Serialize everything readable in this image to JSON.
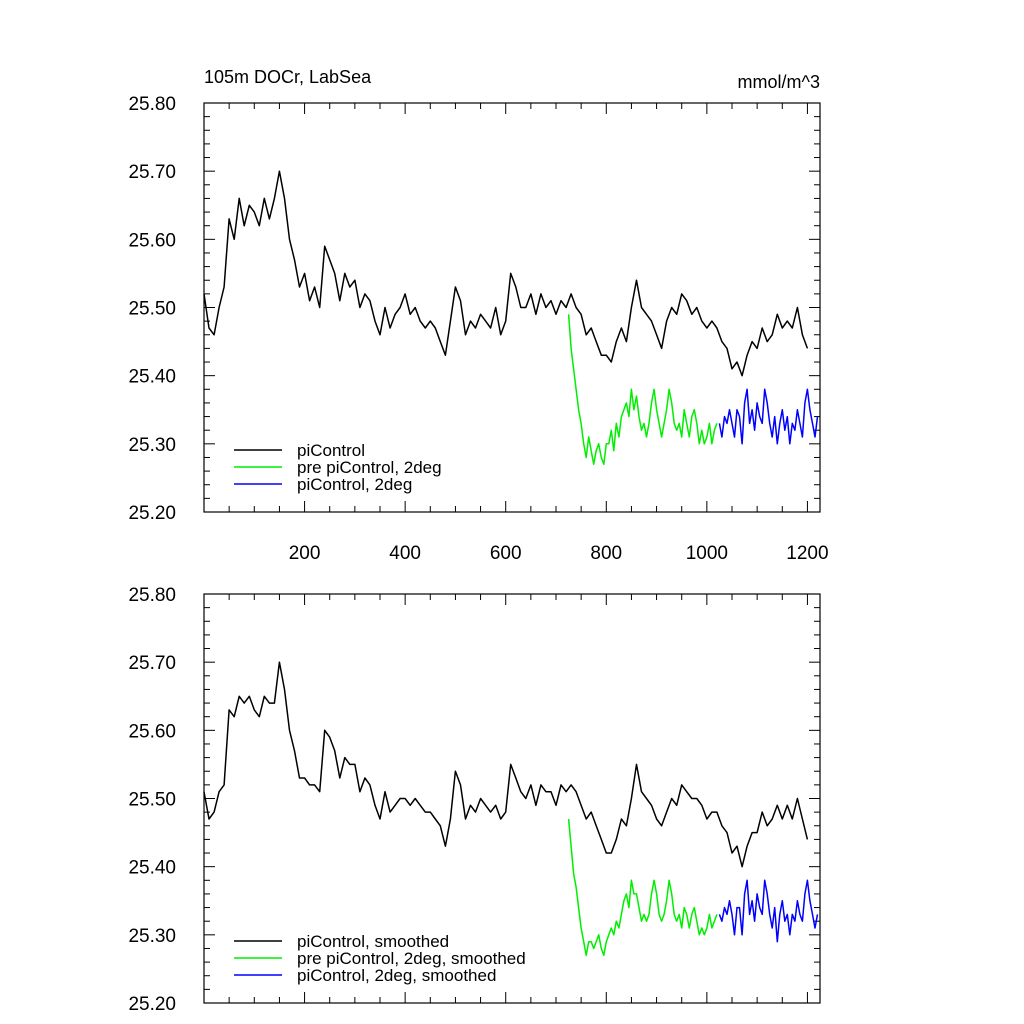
{
  "title_left": "105m DOCr, LabSea",
  "title_right": "mmol/m^3",
  "chart_data": [
    {
      "type": "line",
      "xlim": [
        0,
        1225
      ],
      "ylim": [
        25.2,
        25.8
      ],
      "xticks": [
        200,
        400,
        600,
        800,
        1000,
        1200
      ],
      "xtick_labels": [
        "200",
        "400",
        "600",
        "800",
        "1000",
        "1200"
      ],
      "yticks": [
        25.2,
        25.3,
        25.4,
        25.5,
        25.6,
        25.7,
        25.8
      ],
      "ytick_labels": [
        "25.20",
        "25.30",
        "25.40",
        "25.50",
        "25.60",
        "25.70",
        "25.80"
      ],
      "legend_placement": "bottom-left",
      "series": [
        {
          "name": "piControl",
          "color": "#000000",
          "x": [
            0,
            10,
            20,
            30,
            40,
            50,
            60,
            70,
            80,
            90,
            100,
            110,
            120,
            130,
            140,
            150,
            160,
            170,
            180,
            190,
            200,
            210,
            220,
            230,
            240,
            250,
            260,
            270,
            280,
            290,
            300,
            310,
            320,
            330,
            340,
            350,
            360,
            370,
            380,
            390,
            400,
            410,
            420,
            430,
            440,
            450,
            460,
            470,
            480,
            490,
            500,
            510,
            520,
            530,
            540,
            550,
            560,
            570,
            580,
            590,
            600,
            610,
            620,
            630,
            640,
            650,
            660,
            670,
            680,
            690,
            700,
            710,
            720,
            730,
            740,
            750,
            760,
            770,
            780,
            790,
            800,
            810,
            820,
            830,
            840,
            850,
            860,
            870,
            880,
            890,
            900,
            910,
            920,
            930,
            940,
            950,
            960,
            970,
            980,
            990,
            1000,
            1010,
            1020,
            1030,
            1040,
            1050,
            1060,
            1070,
            1080,
            1090,
            1100,
            1110,
            1120,
            1130,
            1140,
            1150,
            1160,
            1170,
            1180,
            1190,
            1200
          ],
          "y": [
            25.52,
            25.47,
            25.46,
            25.5,
            25.53,
            25.63,
            25.6,
            25.66,
            25.62,
            25.65,
            25.64,
            25.62,
            25.66,
            25.63,
            25.66,
            25.7,
            25.66,
            25.6,
            25.57,
            25.53,
            25.55,
            25.51,
            25.53,
            25.5,
            25.59,
            25.57,
            25.55,
            25.51,
            25.55,
            25.53,
            25.54,
            25.5,
            25.52,
            25.51,
            25.48,
            25.46,
            25.5,
            25.47,
            25.49,
            25.5,
            25.52,
            25.49,
            25.5,
            25.48,
            25.47,
            25.48,
            25.47,
            25.45,
            25.43,
            25.48,
            25.53,
            25.51,
            25.46,
            25.48,
            25.47,
            25.49,
            25.48,
            25.47,
            25.5,
            25.46,
            25.48,
            25.55,
            25.53,
            25.5,
            25.5,
            25.52,
            25.49,
            25.52,
            25.5,
            25.51,
            25.49,
            25.51,
            25.5,
            25.52,
            25.5,
            25.49,
            25.46,
            25.47,
            25.45,
            25.43,
            25.43,
            25.42,
            25.45,
            25.47,
            25.45,
            25.5,
            25.54,
            25.5,
            25.49,
            25.48,
            25.46,
            25.44,
            25.48,
            25.5,
            25.49,
            25.52,
            25.51,
            25.49,
            25.5,
            25.48,
            25.47,
            25.48,
            25.47,
            25.45,
            25.44,
            25.41,
            25.42,
            25.4,
            25.43,
            25.45,
            25.44,
            25.47,
            25.45,
            25.46,
            25.49,
            25.47,
            25.48,
            25.47,
            25.5,
            25.46,
            25.44
          ]
        },
        {
          "name": "pre piControl, 2deg",
          "color": "#00ee00",
          "x": [
            725,
            730,
            735,
            740,
            745,
            750,
            755,
            760,
            765,
            770,
            775,
            780,
            785,
            790,
            795,
            800,
            805,
            810,
            815,
            820,
            825,
            830,
            835,
            840,
            845,
            850,
            855,
            860,
            865,
            870,
            875,
            880,
            885,
            890,
            895,
            900,
            905,
            910,
            915,
            920,
            925,
            930,
            935,
            940,
            945,
            950,
            955,
            960,
            965,
            970,
            975,
            980,
            985,
            990,
            995,
            1000,
            1005,
            1010,
            1015,
            1020
          ],
          "y": [
            25.49,
            25.44,
            25.41,
            25.38,
            25.35,
            25.33,
            25.3,
            25.28,
            25.31,
            25.29,
            25.27,
            25.29,
            25.3,
            25.28,
            25.27,
            25.3,
            25.3,
            25.32,
            25.29,
            25.33,
            25.31,
            25.34,
            25.35,
            25.36,
            25.34,
            25.38,
            25.35,
            25.37,
            25.34,
            25.32,
            25.33,
            25.31,
            25.33,
            25.36,
            25.38,
            25.35,
            25.33,
            25.31,
            25.33,
            25.35,
            25.38,
            25.36,
            25.33,
            25.32,
            25.33,
            25.31,
            25.35,
            25.33,
            25.31,
            25.34,
            25.35,
            25.33,
            25.3,
            25.32,
            25.3,
            25.31,
            25.33,
            25.3,
            25.32,
            25.33
          ]
        },
        {
          "name": "piControl, 2deg",
          "color": "#0000ff",
          "x": [
            1025,
            1030,
            1035,
            1040,
            1045,
            1050,
            1055,
            1060,
            1065,
            1070,
            1075,
            1080,
            1085,
            1090,
            1095,
            1100,
            1105,
            1110,
            1115,
            1120,
            1125,
            1130,
            1135,
            1140,
            1145,
            1150,
            1155,
            1160,
            1165,
            1170,
            1175,
            1180,
            1185,
            1190,
            1195,
            1200,
            1205,
            1210,
            1215,
            1220
          ],
          "y": [
            25.33,
            25.31,
            25.34,
            25.33,
            25.35,
            25.33,
            25.31,
            25.35,
            25.34,
            25.3,
            25.36,
            25.38,
            25.33,
            25.35,
            25.32,
            25.36,
            25.34,
            25.33,
            25.38,
            25.36,
            25.33,
            25.31,
            25.34,
            25.3,
            25.33,
            25.35,
            25.32,
            25.34,
            25.3,
            25.33,
            25.32,
            25.35,
            25.33,
            25.31,
            25.36,
            25.38,
            25.35,
            25.33,
            25.31,
            25.34
          ]
        }
      ]
    },
    {
      "type": "line",
      "xlim": [
        0,
        1225
      ],
      "ylim": [
        25.2,
        25.8
      ],
      "xticks": [
        200,
        400,
        600,
        800,
        1000,
        1200
      ],
      "yticks": [
        25.2,
        25.3,
        25.4,
        25.5,
        25.6,
        25.7,
        25.8
      ],
      "ytick_labels": [
        "25.20",
        "25.30",
        "25.40",
        "25.50",
        "25.60",
        "25.70",
        "25.80"
      ],
      "legend_placement": "bottom-left",
      "series": [
        {
          "name": "piControl, smoothed",
          "color": "#000000",
          "x": [
            0,
            10,
            20,
            30,
            40,
            50,
            60,
            70,
            80,
            90,
            100,
            110,
            120,
            130,
            140,
            150,
            160,
            170,
            180,
            190,
            200,
            210,
            220,
            230,
            240,
            250,
            260,
            270,
            280,
            290,
            300,
            310,
            320,
            330,
            340,
            350,
            360,
            370,
            380,
            390,
            400,
            410,
            420,
            430,
            440,
            450,
            460,
            470,
            480,
            490,
            500,
            510,
            520,
            530,
            540,
            550,
            560,
            570,
            580,
            590,
            600,
            610,
            620,
            630,
            640,
            650,
            660,
            670,
            680,
            690,
            700,
            710,
            720,
            730,
            740,
            750,
            760,
            770,
            780,
            790,
            800,
            810,
            820,
            830,
            840,
            850,
            860,
            870,
            880,
            890,
            900,
            910,
            920,
            930,
            940,
            950,
            960,
            970,
            980,
            990,
            1000,
            1010,
            1020,
            1030,
            1040,
            1050,
            1060,
            1070,
            1080,
            1090,
            1100,
            1110,
            1120,
            1130,
            1140,
            1150,
            1160,
            1170,
            1180,
            1190,
            1200
          ],
          "y": [
            25.51,
            25.47,
            25.48,
            25.51,
            25.52,
            25.63,
            25.62,
            25.65,
            25.64,
            25.65,
            25.63,
            25.62,
            25.65,
            25.64,
            25.64,
            25.7,
            25.66,
            25.6,
            25.57,
            25.53,
            25.53,
            25.52,
            25.52,
            25.51,
            25.6,
            25.59,
            25.57,
            25.53,
            25.56,
            25.55,
            25.55,
            25.51,
            25.53,
            25.52,
            25.49,
            25.47,
            25.51,
            25.48,
            25.49,
            25.5,
            25.5,
            25.49,
            25.5,
            25.49,
            25.48,
            25.48,
            25.47,
            25.46,
            25.43,
            25.47,
            25.54,
            25.52,
            25.47,
            25.49,
            25.48,
            25.5,
            25.49,
            25.48,
            25.49,
            25.47,
            25.48,
            25.55,
            25.53,
            25.51,
            25.5,
            25.52,
            25.49,
            25.52,
            25.51,
            25.51,
            25.49,
            25.52,
            25.51,
            25.52,
            25.51,
            25.49,
            25.47,
            25.48,
            25.46,
            25.44,
            25.42,
            25.42,
            25.44,
            25.47,
            25.46,
            25.5,
            25.55,
            25.51,
            25.5,
            25.49,
            25.47,
            25.46,
            25.48,
            25.5,
            25.49,
            25.52,
            25.51,
            25.5,
            25.5,
            25.49,
            25.47,
            25.48,
            25.48,
            25.46,
            25.45,
            25.42,
            25.43,
            25.4,
            25.43,
            25.45,
            25.45,
            25.48,
            25.46,
            25.47,
            25.49,
            25.47,
            25.49,
            25.47,
            25.5,
            25.47,
            25.44
          ]
        },
        {
          "name": "pre piControl, 2deg, smoothed",
          "color": "#00ee00",
          "x": [
            725,
            730,
            735,
            740,
            745,
            750,
            755,
            760,
            765,
            770,
            775,
            780,
            785,
            790,
            795,
            800,
            805,
            810,
            815,
            820,
            825,
            830,
            835,
            840,
            845,
            850,
            855,
            860,
            865,
            870,
            875,
            880,
            885,
            890,
            895,
            900,
            905,
            910,
            915,
            920,
            925,
            930,
            935,
            940,
            945,
            950,
            955,
            960,
            965,
            970,
            975,
            980,
            985,
            990,
            995,
            1000,
            1005,
            1010,
            1015,
            1020
          ],
          "y": [
            25.47,
            25.43,
            25.39,
            25.37,
            25.34,
            25.31,
            25.29,
            25.27,
            25.29,
            25.29,
            25.28,
            25.29,
            25.3,
            25.28,
            25.27,
            25.29,
            25.3,
            25.31,
            25.3,
            25.32,
            25.31,
            25.33,
            25.35,
            25.36,
            25.34,
            25.38,
            25.36,
            25.36,
            25.34,
            25.32,
            25.33,
            25.32,
            25.33,
            25.36,
            25.38,
            25.36,
            25.33,
            25.32,
            25.33,
            25.35,
            25.38,
            25.36,
            25.33,
            25.32,
            25.33,
            25.31,
            25.34,
            25.33,
            25.31,
            25.33,
            25.34,
            25.32,
            25.3,
            25.31,
            25.3,
            25.31,
            25.33,
            25.31,
            25.32,
            25.33
          ]
        },
        {
          "name": "piControl, 2deg, smoothed",
          "color": "#0000ff",
          "x": [
            1025,
            1030,
            1035,
            1040,
            1045,
            1050,
            1055,
            1060,
            1065,
            1070,
            1075,
            1080,
            1085,
            1090,
            1095,
            1100,
            1105,
            1110,
            1115,
            1120,
            1125,
            1130,
            1135,
            1140,
            1145,
            1150,
            1155,
            1160,
            1165,
            1170,
            1175,
            1180,
            1185,
            1190,
            1195,
            1200,
            1205,
            1210,
            1215,
            1220
          ],
          "y": [
            25.33,
            25.32,
            25.34,
            25.33,
            25.35,
            25.33,
            25.3,
            25.34,
            25.34,
            25.3,
            25.36,
            25.38,
            25.33,
            25.35,
            25.32,
            25.36,
            25.34,
            25.33,
            25.38,
            25.36,
            25.33,
            25.31,
            25.34,
            25.29,
            25.33,
            25.35,
            25.32,
            25.33,
            25.3,
            25.33,
            25.32,
            25.35,
            25.33,
            25.32,
            25.36,
            25.38,
            25.35,
            25.33,
            25.31,
            25.33
          ]
        }
      ]
    }
  ]
}
